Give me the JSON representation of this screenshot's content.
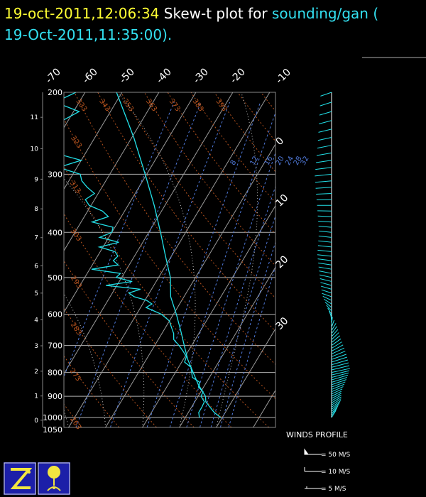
{
  "header": {
    "timestamp": "19-oct-2011,12:06:34",
    "title_text": "Skew-t plot for",
    "source": "sounding/gan (",
    "launch_time": "19-Oct-2011,11:35:00)."
  },
  "chart_data": {
    "type": "skew-t",
    "pressure_ticks": [
      200,
      300,
      400,
      500,
      600,
      700,
      800,
      900,
      1000,
      1050
    ],
    "height_ticks_km": [
      11,
      10,
      9,
      8,
      7,
      6,
      5,
      4,
      3,
      2,
      1,
      0
    ],
    "top_temp_ticks": [
      "-70",
      "-60",
      "-50",
      "-40",
      "-30",
      "-20"
    ],
    "right_temp_ticks": [
      "-10",
      "0",
      "10",
      "20",
      "30"
    ],
    "dry_adiabat_labels": [
      "313",
      "323",
      "333",
      "343",
      "353",
      "363",
      "373",
      "383",
      "393",
      "303",
      "293",
      "283",
      "273",
      "263",
      "253"
    ],
    "mixing_ratio_labels": [
      "8",
      "12",
      "16",
      "20",
      "24",
      "28",
      "32"
    ],
    "temperature": {
      "p": [
        1000,
        975,
        950,
        925,
        900,
        850,
        800,
        750,
        700,
        650,
        600,
        550,
        500,
        450,
        400,
        350,
        300,
        250,
        200
      ],
      "t": [
        29.6,
        27.0,
        25.0,
        23.0,
        22.0,
        18.2,
        14.8,
        11.2,
        8.0,
        4.6,
        0.8,
        -3.6,
        -6.8,
        -11.6,
        -16.8,
        -22.9,
        -30.4,
        -39.5,
        -51.5
      ]
    },
    "dewpoint": {
      "p": [
        1000,
        975,
        950,
        925,
        900,
        880,
        860,
        840,
        820,
        800,
        780,
        760,
        740,
        720,
        700,
        680,
        660,
        640,
        620,
        600,
        580,
        570,
        560,
        550,
        540,
        530,
        520,
        510,
        500,
        490,
        480,
        470,
        460,
        450,
        440,
        430,
        420,
        410,
        400,
        390,
        380,
        370,
        360,
        350,
        340,
        330,
        320,
        310,
        300,
        290,
        280,
        270,
        260,
        250,
        240,
        230,
        220,
        210,
        200
      ],
      "t": [
        23.8,
        22.8,
        22.8,
        22.6,
        20.8,
        20.6,
        18.6,
        18.2,
        15.4,
        14.4,
        13.4,
        10.8,
        10.4,
        8.6,
        6.6,
        4.2,
        3.2,
        1.6,
        0.0,
        -3.2,
        -8.5,
        -7.5,
        -9.5,
        -13.5,
        -15.5,
        -13.0,
        -23.0,
        -16.5,
        -21.5,
        -21.0,
        -29.5,
        -23.0,
        -25.0,
        -24.5,
        -26.0,
        -31.0,
        -26.5,
        -32.5,
        -30.0,
        -30.5,
        -37.0,
        -33.5,
        -36.0,
        -40.5,
        -42.5,
        -41.0,
        -44.0,
        -46.5,
        -48.0,
        -55.0,
        -50.0,
        -58.5,
        -59.0,
        -64.0,
        -67.5,
        -61.5,
        -58.5,
        -66.5,
        -62.5
      ]
    },
    "winds": [
      {
        "p": 1000,
        "dir": 200,
        "spd": 10
      },
      {
        "p": 950,
        "dir": 220,
        "spd": 12
      },
      {
        "p": 900,
        "dir": 230,
        "spd": 10
      },
      {
        "p": 850,
        "dir": 240,
        "spd": 15
      },
      {
        "p": 800,
        "dir": 250,
        "spd": 18
      },
      {
        "p": 750,
        "dir": 240,
        "spd": 15
      },
      {
        "p": 700,
        "dir": 220,
        "spd": 12
      },
      {
        "p": 650,
        "dir": 200,
        "spd": 10
      },
      {
        "p": 600,
        "dir": 160,
        "spd": 8
      },
      {
        "p": 550,
        "dir": 120,
        "spd": 8
      },
      {
        "p": 500,
        "dir": 110,
        "spd": 10
      },
      {
        "p": 450,
        "dir": 100,
        "spd": 12
      },
      {
        "p": 400,
        "dir": 100,
        "spd": 10
      },
      {
        "p": 350,
        "dir": 90,
        "spd": 12
      },
      {
        "p": 300,
        "dir": 80,
        "spd": 15
      },
      {
        "p": 250,
        "dir": 70,
        "spd": 12
      },
      {
        "p": 200,
        "dir": 60,
        "spd": 10
      }
    ],
    "colors": {
      "temperature": "#22e0e8",
      "dewpoint": "#22e0e8",
      "isotherms": "#9a9a9a",
      "dry_adiabats": "#b4521e",
      "mixing_ratio": "#4f78d8",
      "moist_adiabats": "#bfbfbf",
      "wind": "#22e0e8",
      "isobars": "#b0b0b0"
    }
  },
  "legend": {
    "title": "WINDS PROFILE",
    "items": [
      "= 50 M/S",
      "= 10 M/S",
      "= 5 M/S"
    ]
  }
}
